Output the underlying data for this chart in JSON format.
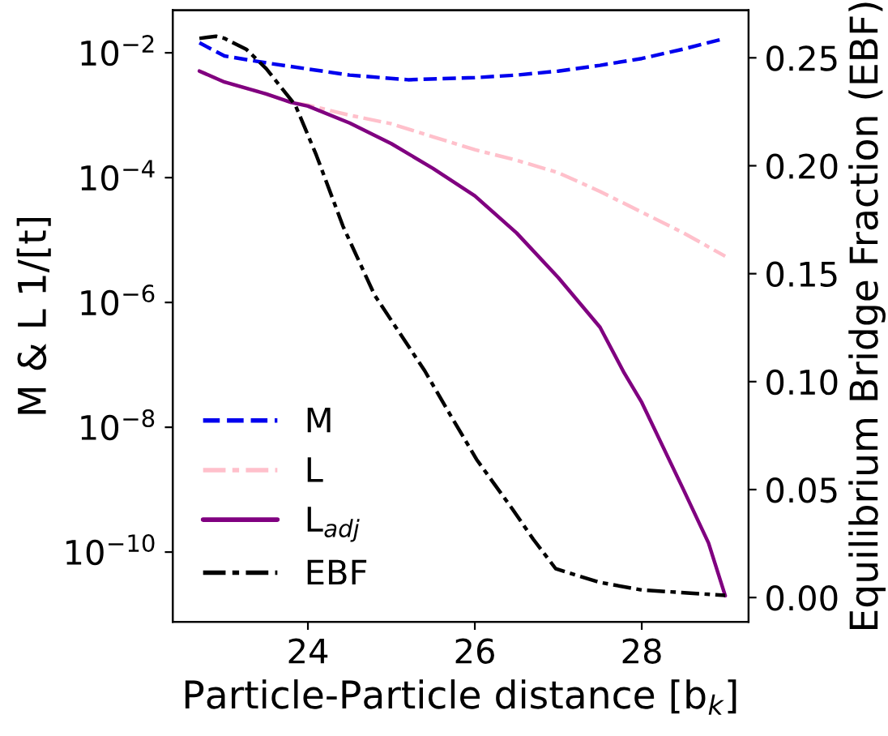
{
  "chart_data": {
    "type": "line",
    "xlabel": "Particle-Particle distance [b$_{k}$]",
    "ylabel": "M & L 1/[t]",
    "y2label": "Equilibrium Bridge Fraction (EBF)",
    "log": "y",
    "legend": "bottom left",
    "grid": false,
    "marker": "none",
    "xlim": [
      22.38,
      29.28
    ],
    "xticks": [
      24,
      26,
      28
    ],
    "ylim": [
      7.6e-12,
      0.048
    ],
    "yticks": [
      {
        "value": 0.01,
        "label": "10$^{−2}$"
      },
      {
        "value": 0.0001,
        "label": "10$^{−4}$"
      },
      {
        "value": 1e-06,
        "label": "10$^{−6}$"
      },
      {
        "value": 1e-08,
        "label": "10$^{−8}$"
      },
      {
        "value": 1e-10,
        "label": "10$^{−10}$"
      }
    ],
    "y2lim": [
      -0.0113,
      0.272
    ],
    "y2ticks": [
      {
        "value": 0,
        "label": "0.00"
      },
      {
        "value": 0.05,
        "label": "0.05"
      },
      {
        "value": 0.1,
        "label": "0.10"
      },
      {
        "value": 0.15,
        "label": "0.15"
      },
      {
        "value": 0.2,
        "label": "0.20"
      },
      {
        "value": 0.25,
        "label": "0.25"
      }
    ],
    "series": [
      {
        "name": "M",
        "color": "#0000ee",
        "line_style": "dashed",
        "x": [
          22.7,
          23,
          23.5,
          24,
          24.5,
          25.2,
          26,
          26.5,
          27,
          27.5,
          28,
          28.5,
          29
        ],
        "values": [
          0.0145,
          0.0089,
          0.0069,
          0.0055,
          0.0044,
          0.0037,
          0.004,
          0.0044,
          0.0051,
          0.0063,
          0.0081,
          0.0115,
          0.017
        ]
      },
      {
        "name": "L",
        "color": "#ffc0cb",
        "line_style": "dashdot",
        "x": [
          22.7,
          23,
          23.5,
          23.8,
          24,
          24.5,
          25,
          25.5,
          26,
          26.5,
          27,
          27.5,
          28,
          28.5,
          29
        ],
        "values": [
          0.0051,
          0.0034,
          0.0022,
          0.0016,
          0.00145,
          0.001,
          0.00073,
          0.00045,
          0.00028,
          0.00019,
          0.00012,
          6e-05,
          2.8e-05,
          1.3e-05,
          5.5e-06
        ]
      },
      {
        "name": "L$_{adj}$",
        "color": "#800080",
        "line_style": "solid",
        "x": [
          22.7,
          23,
          23.5,
          23.8,
          24,
          24.5,
          25,
          25.5,
          26,
          26.5,
          27,
          27.5,
          27.79,
          28,
          28.5,
          28.8,
          29
        ],
        "values": [
          0.0051,
          0.0034,
          0.0022,
          0.0016,
          0.0014,
          0.00075,
          0.00035,
          0.00014,
          5.1e-05,
          1.3e-05,
          2.5e-06,
          4e-07,
          7.4e-08,
          2.5e-08,
          1e-09,
          1.4e-10,
          2e-11
        ]
      },
      {
        "name": "EBF",
        "color": "#000000",
        "line_style": "dashdot",
        "axis": "y2",
        "x": [
          22.7,
          22.9,
          23,
          23.26,
          23.5,
          23.85,
          24.1,
          24.42,
          24.8,
          25.4,
          25.7,
          26.02,
          26.45,
          26.7,
          26.97,
          27.5,
          28,
          29
        ],
        "values": [
          0.259,
          0.26,
          0.259,
          0.254,
          0.245,
          0.228,
          0.205,
          0.172,
          0.14,
          0.105,
          0.085,
          0.064,
          0.041,
          0.027,
          0.0133,
          0.007,
          0.0035,
          0.001
        ]
      }
    ]
  }
}
